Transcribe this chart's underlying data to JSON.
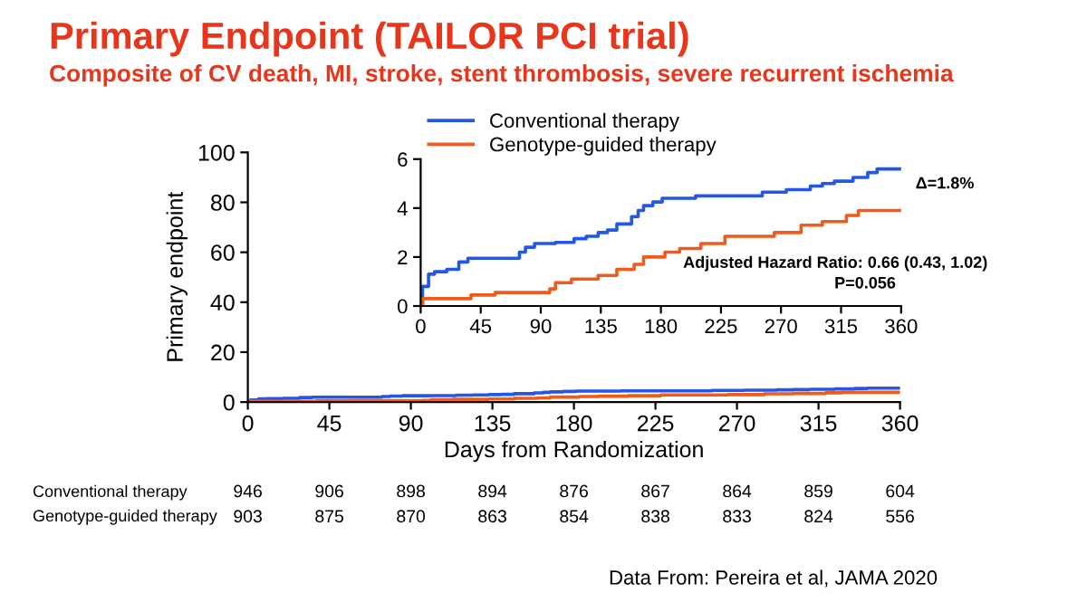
{
  "chart_data": [
    {
      "type": "step",
      "title": "Primary Endpoint (TAILOR PCI trial)",
      "subtitle": "Composite of CV death, MI, stroke, stent thrombosis, severe recurrent ischemia",
      "xlabel": "Days from Randomization",
      "ylabel": "Primary endpoint",
      "xlim": [
        0,
        360
      ],
      "xticks": [
        0,
        45,
        90,
        135,
        180,
        225,
        270,
        315,
        360
      ],
      "ylim": [
        0,
        100
      ],
      "yticks": [
        0,
        20,
        40,
        60,
        80,
        100
      ],
      "grid": false,
      "legend": false,
      "series": [
        {
          "color": "#2457e8",
          "x": [
            0,
            1.4,
            5.9,
            10.4,
            19.5,
            28.6,
            35.4,
            69.5,
            74,
            78.5,
            85.3,
            101,
            115,
            124,
            133,
            140,
            147,
            158,
            163,
            167,
            174,
            181,
            206,
            256,
            274,
            292,
            301,
            310,
            324,
            335,
            342,
            360
          ],
          "values": [
            0,
            0.8,
            1.3,
            1.4,
            1.5,
            1.8,
            1.95,
            1.95,
            2.2,
            2.4,
            2.55,
            2.6,
            2.75,
            2.85,
            3.0,
            3.1,
            3.35,
            3.65,
            3.9,
            4.1,
            4.25,
            4.4,
            4.5,
            4.65,
            4.75,
            4.9,
            5.0,
            5.1,
            5.25,
            5.45,
            5.6,
            5.6
          ]
        },
        {
          "color": "#f05a1a",
          "x": [
            0,
            1.4,
            37.7,
            55.8,
            96.7,
            101,
            113,
            133,
            147,
            160,
            167,
            183,
            194,
            210,
            228,
            265,
            285,
            301,
            319,
            328,
            360
          ],
          "values": [
            0,
            0.3,
            0.45,
            0.55,
            0.7,
            0.95,
            1.1,
            1.25,
            1.5,
            1.7,
            2.0,
            2.2,
            2.35,
            2.55,
            2.85,
            3.0,
            3.3,
            3.45,
            3.7,
            3.9,
            3.9
          ]
        }
      ],
      "annotations": [
        "Conventional therapy",
        "946",
        "906",
        "898",
        "894",
        "876",
        "867",
        "864",
        "859",
        "604",
        "Genotype-guided therapy",
        "903",
        "875",
        "870",
        "863",
        "854",
        "838",
        "833",
        "824",
        "556",
        "Data From: Pereira et al, JAMA 2020"
      ]
    },
    {
      "type": "step",
      "xlim": [
        0,
        360
      ],
      "xticks": [
        0,
        45,
        90,
        135,
        180,
        225,
        270,
        315,
        360
      ],
      "ylim": [
        0,
        6
      ],
      "yticks": [
        0,
        2,
        4,
        6
      ],
      "grid": false,
      "legend": "top left",
      "series": [
        {
          "name": "Conventional therapy",
          "color": "#2457e8",
          "x": [
            0,
            1.4,
            5.9,
            10.4,
            19.5,
            28.6,
            35.4,
            69.5,
            74,
            78.5,
            85.3,
            101,
            115,
            124,
            133,
            140,
            147,
            158,
            163,
            167,
            174,
            181,
            206,
            256,
            274,
            292,
            301,
            310,
            324,
            335,
            342,
            360
          ],
          "values": [
            0,
            0.8,
            1.3,
            1.4,
            1.5,
            1.8,
            1.95,
            1.95,
            2.2,
            2.4,
            2.55,
            2.6,
            2.75,
            2.85,
            3.0,
            3.1,
            3.35,
            3.65,
            3.9,
            4.1,
            4.25,
            4.4,
            4.5,
            4.65,
            4.75,
            4.9,
            5.0,
            5.1,
            5.25,
            5.45,
            5.6,
            5.6
          ]
        },
        {
          "name": "Genotype-guided therapy",
          "color": "#f05a1a",
          "x": [
            0,
            1.4,
            37.7,
            55.8,
            96.7,
            101,
            113,
            133,
            147,
            160,
            167,
            183,
            194,
            210,
            228,
            265,
            285,
            301,
            319,
            328,
            360
          ],
          "values": [
            0,
            0.3,
            0.45,
            0.55,
            0.7,
            0.95,
            1.1,
            1.25,
            1.5,
            1.7,
            2.0,
            2.2,
            2.35,
            2.55,
            2.85,
            3.0,
            3.3,
            3.45,
            3.7,
            3.9,
            3.9
          ]
        }
      ],
      "annotations": [
        "Δ=1.8%",
        "Adjusted Hazard Ratio: 0.66 (0.43, 1.02)",
        "P=0.056"
      ]
    }
  ]
}
